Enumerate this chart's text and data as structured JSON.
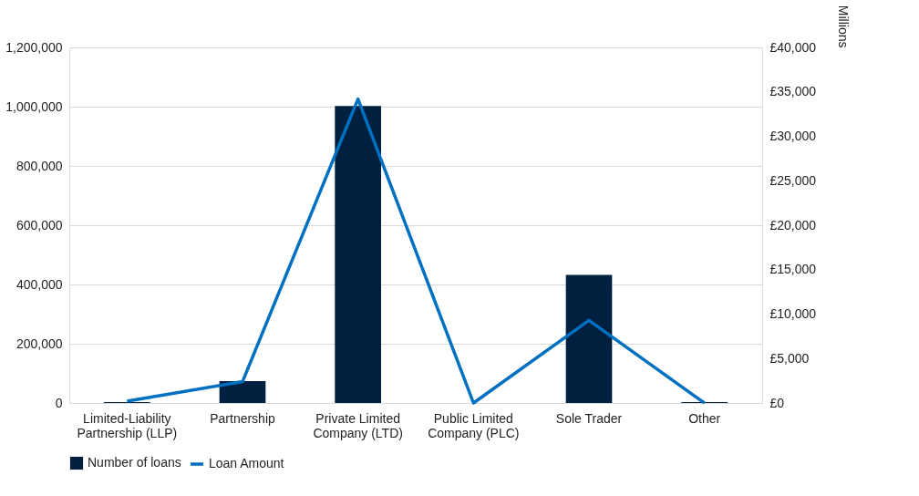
{
  "chart_data": {
    "type": "bar",
    "categories": [
      "Limited-Liability Partnership (LLP)",
      "Partnership",
      "Private Limited Company (LTD)",
      "Public Limited Company (PLC)",
      "Sole Trader",
      "Other"
    ],
    "series": [
      {
        "name": "Number of loans",
        "color": "#002040",
        "values": [
          3000,
          74000,
          1002000,
          0,
          432000,
          3000
        ]
      },
      {
        "name": "Loan Amount",
        "type": "line",
        "color": "#0070c0",
        "axis": "y2",
        "values": [
          200,
          2400,
          34200,
          0,
          9300,
          0
        ]
      }
    ],
    "y2label": "Millions",
    "ylim": [
      0,
      1200000
    ],
    "yticks": [
      0,
      {
        "value": 200000,
        "label": "200,000"
      },
      {
        "value": 400000,
        "label": "400,000"
      },
      {
        "value": 600000,
        "label": "600,000"
      },
      {
        "value": 800000,
        "label": "800,000"
      },
      {
        "value": 1000000,
        "label": "1,000,000"
      },
      {
        "value": 1200000,
        "label": "1,200,000"
      }
    ],
    "y2lim": [
      0,
      40000
    ],
    "y2ticks": [
      {
        "value": 0,
        "label": "£0"
      },
      {
        "value": 5000,
        "label": "£5,000"
      },
      {
        "value": 10000,
        "label": "£10,000"
      },
      {
        "value": 15000,
        "label": "£15,000"
      },
      {
        "value": 20000,
        "label": "£20,000"
      },
      {
        "value": 25000,
        "label": "£25,000"
      },
      {
        "value": 30000,
        "label": "£30,000"
      },
      {
        "value": 35000,
        "label": "£35,000"
      },
      {
        "value": 40000,
        "label": "£40,000"
      }
    ],
    "grid": "y",
    "legend": "bottom",
    "marker": "none",
    "line_style": "solid"
  }
}
